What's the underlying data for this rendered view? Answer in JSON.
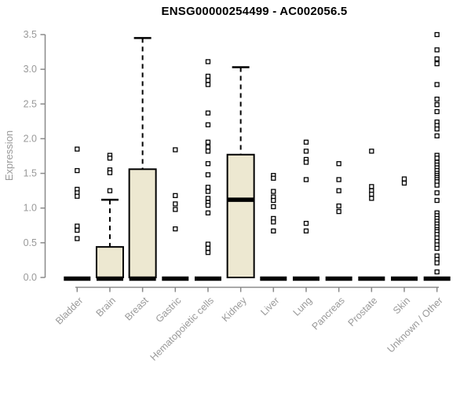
{
  "title": "ENSG00000254499 - AC002056.5",
  "chart_data": {
    "type": "boxplot",
    "title": "ENSG00000254499 - AC002056.5",
    "xlabel": "",
    "ylabel": "Expression",
    "ylim": [
      0,
      3.5
    ],
    "ytick_labels": [
      "0.0",
      "0.5",
      "1.0",
      "1.5",
      "2.0",
      "2.5",
      "3.0",
      "3.5"
    ],
    "grid": "off",
    "legend": "none",
    "colors": {
      "box_fill": "#ede8d1",
      "box_stroke": "#000000",
      "median": "#000000",
      "outlier_stroke": "#000000",
      "outlier_fill": "#ffffff",
      "axis_line": "#8a8a8a",
      "axis_text": "#999999",
      "title_text": "#000000"
    },
    "categories": [
      "Bladder",
      "Brain",
      "Breast",
      "Gastric",
      "Hematopoietic cells",
      "Kidney",
      "Liver",
      "Lung",
      "Pancreas",
      "Prostate",
      "Skin",
      "Unknown / Other"
    ],
    "series": [
      {
        "name": "Bladder",
        "q1": 0,
        "median": 0,
        "q3": 0,
        "whisker_high": 0,
        "outliers": [
          1.85,
          1.54,
          1.27,
          1.22,
          1.17,
          0.74,
          0.68,
          0.56
        ]
      },
      {
        "name": "Brain",
        "q1": 0,
        "median": 0,
        "q3": 0.44,
        "whisker_high": 1.12,
        "outliers": [
          1.76,
          1.72,
          1.55,
          1.51,
          1.25
        ]
      },
      {
        "name": "Breast",
        "q1": 0,
        "median": 0,
        "q3": 1.56,
        "whisker_high": 3.45,
        "outliers": []
      },
      {
        "name": "Gastric",
        "q1": 0,
        "median": 0,
        "q3": 0,
        "whisker_high": 0,
        "outliers": [
          1.84,
          1.18,
          1.06,
          0.98,
          0.7
        ]
      },
      {
        "name": "Hematopoietic cells",
        "q1": 0,
        "median": 0,
        "q3": 0,
        "whisker_high": 0,
        "outliers": [
          3.11,
          2.9,
          2.84,
          2.78,
          2.37,
          2.2,
          1.95,
          1.88,
          1.82,
          1.64,
          1.48,
          1.3,
          1.24,
          1.14,
          1.08,
          1.04,
          0.93,
          0.48,
          0.42,
          0.36
        ]
      },
      {
        "name": "Kidney",
        "q1": 0,
        "median": 1.12,
        "q3": 1.77,
        "whisker_high": 3.03,
        "outliers": []
      },
      {
        "name": "Liver",
        "q1": 0,
        "median": 0,
        "q3": 0,
        "whisker_high": 0,
        "outliers": [
          1.47,
          1.43,
          1.24,
          1.16,
          1.11,
          1.02,
          0.85,
          0.8,
          0.67
        ]
      },
      {
        "name": "Lung",
        "q1": 0,
        "median": 0,
        "q3": 0,
        "whisker_high": 0,
        "outliers": [
          1.95,
          1.82,
          1.7,
          1.66,
          1.41,
          0.78,
          0.67
        ]
      },
      {
        "name": "Pancreas",
        "q1": 0,
        "median": 0,
        "q3": 0,
        "whisker_high": 0,
        "outliers": [
          1.64,
          1.41,
          1.25,
          1.03,
          0.95
        ]
      },
      {
        "name": "Prostate",
        "q1": 0,
        "median": 0,
        "q3": 0,
        "whisker_high": 0,
        "outliers": [
          1.82,
          1.31,
          1.25,
          1.2,
          1.14
        ]
      },
      {
        "name": "Skin",
        "q1": 0,
        "median": 0,
        "q3": 0,
        "whisker_high": 0,
        "outliers": [
          1.42,
          1.36
        ]
      },
      {
        "name": "Unknown / Other",
        "q1": 0,
        "median": 0,
        "q3": 0,
        "whisker_high": 0,
        "outliers": [
          3.5,
          3.28,
          3.15,
          3.08,
          2.78,
          2.57,
          2.49,
          2.39,
          2.24,
          2.19,
          2.14,
          2.04,
          1.76,
          1.72,
          1.66,
          1.62,
          1.58,
          1.54,
          1.5,
          1.47,
          1.44,
          1.41,
          1.38,
          1.33,
          1.22,
          1.11,
          0.93,
          0.89,
          0.85,
          0.81,
          0.77,
          0.73,
          0.69,
          0.66,
          0.62,
          0.57,
          0.52,
          0.47,
          0.42,
          0.31,
          0.26,
          0.21,
          0.08
        ]
      }
    ]
  }
}
